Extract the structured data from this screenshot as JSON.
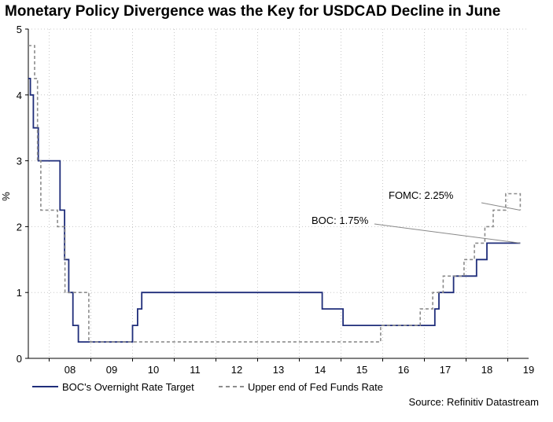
{
  "chart_data": {
    "type": "line",
    "title": "Monetary Policy Divergence was the Key for USDCAD Decline in June",
    "xlabel": "",
    "ylabel": "%",
    "xlim": [
      2007.5,
      2019.5
    ],
    "ylim": [
      0,
      5
    ],
    "y_ticks": [
      0,
      1,
      2,
      3,
      4,
      5
    ],
    "x_ticks": [
      {
        "label": "08",
        "value": 2008.0
      },
      {
        "label": "09",
        "value": 2009.0
      },
      {
        "label": "10",
        "value": 2010.0
      },
      {
        "label": "11",
        "value": 2011.0
      },
      {
        "label": "12",
        "value": 2012.0
      },
      {
        "label": "13",
        "value": 2013.0
      },
      {
        "label": "14",
        "value": 2014.0
      },
      {
        "label": "15",
        "value": 2015.0
      },
      {
        "label": "16",
        "value": 2016.0
      },
      {
        "label": "17",
        "value": 2017.0
      },
      {
        "label": "18",
        "value": 2018.0
      },
      {
        "label": "19",
        "value": 2019.0
      }
    ],
    "grid": true,
    "series": [
      {
        "name": "BOC's Overnight Rate Target",
        "color": "#1f2d7a",
        "style": "solid",
        "step": true,
        "x": [
          2007.5,
          2007.55,
          2007.62,
          2007.74,
          2007.96,
          2008.26,
          2008.37,
          2008.47,
          2008.57,
          2008.7,
          2009.0,
          2009.9,
          2010.0,
          2010.12,
          2010.22,
          2011.0,
          2014.55,
          2014.99,
          2015.05,
          2015.5,
          2016.0,
          2017.0,
          2017.25,
          2017.35,
          2017.7,
          2018.0,
          2018.25,
          2018.5,
          2018.8,
          2019.3
        ],
        "values": [
          4.25,
          4.0,
          3.5,
          3.0,
          3.0,
          2.25,
          1.5,
          1.0,
          0.5,
          0.25,
          0.25,
          0.25,
          0.5,
          0.75,
          1.0,
          1.0,
          0.75,
          0.75,
          0.5,
          0.5,
          0.5,
          0.5,
          0.75,
          1.0,
          1.25,
          1.25,
          1.5,
          1.75,
          1.75,
          1.75
        ]
      },
      {
        "name": "Upper end of Fed Funds Rate",
        "color": "#8c8c8c",
        "style": "dashed",
        "step": true,
        "x": [
          2007.5,
          2007.65,
          2007.72,
          2007.8,
          2008.2,
          2008.33,
          2008.38,
          2008.95,
          2015.4,
          2015.95,
          2016.9,
          2017.2,
          2017.45,
          2017.95,
          2018.2,
          2018.45,
          2018.65,
          2018.95,
          2019.15,
          2019.3
        ],
        "values": [
          4.75,
          4.25,
          3.0,
          2.25,
          2.0,
          2.0,
          1.0,
          0.25,
          0.25,
          0.5,
          0.75,
          1.0,
          1.25,
          1.5,
          1.75,
          2.0,
          2.25,
          2.5,
          2.5,
          2.25
        ]
      }
    ],
    "annotations": [
      {
        "text": "FOMC: 2.25%",
        "points_to_series": "Upper end of Fed Funds Rate",
        "target": {
          "x": 2019.3,
          "y": 2.25
        }
      },
      {
        "text": "BOC: 1.75%",
        "points_to_series": "BOC's Overnight Rate Target",
        "target": {
          "x": 2019.3,
          "y": 1.75
        }
      }
    ],
    "legend": {
      "placement": "bottom-left",
      "entries": [
        "BOC's Overnight Rate Target",
        "Upper end of Fed Funds Rate"
      ]
    },
    "source": "Source: Refinitiv Datastream"
  }
}
